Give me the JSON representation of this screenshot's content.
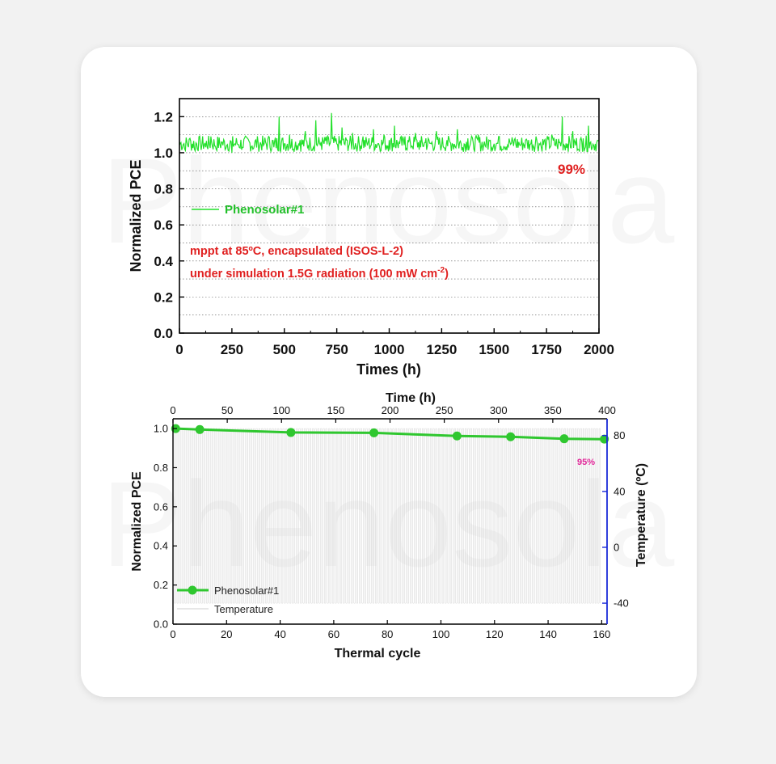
{
  "watermark": {
    "text": "Phenosola"
  },
  "chart_data": [
    {
      "type": "line",
      "ylabel": "Normalized PCE",
      "xlabel": "Times (h)",
      "xlim": [
        0,
        2000
      ],
      "ylim": [
        0.0,
        1.3
      ],
      "xticks": [
        "0",
        "250",
        "500",
        "750",
        "1000",
        "1250",
        "1500",
        "1750",
        "2000"
      ],
      "yticks": [
        "0.0",
        "0.2",
        "0.4",
        "0.6",
        "0.8",
        "1.0",
        "1.2"
      ],
      "grid": "dotted horizontal",
      "series": [
        {
          "name": "Phenosolar#1",
          "color": "#22e02a",
          "x": [
            0,
            25,
            50,
            75,
            100,
            125,
            150,
            175,
            200,
            225,
            250,
            275,
            300,
            325,
            350,
            375,
            400,
            425,
            450,
            475,
            500,
            525,
            550,
            575,
            600,
            625,
            650,
            675,
            700,
            725,
            750,
            775,
            800,
            825,
            850,
            875,
            900,
            925,
            950,
            975,
            1000,
            1025,
            1050,
            1075,
            1100,
            1125,
            1150,
            1175,
            1200,
            1225,
            1250,
            1275,
            1300,
            1325,
            1350,
            1375,
            1400,
            1425,
            1450,
            1475,
            1500,
            1525,
            1550,
            1575,
            1600,
            1625,
            1650,
            1675,
            1700,
            1725,
            1750,
            1775,
            1800,
            1825,
            1850,
            1875,
            1900,
            1925,
            1950,
            1975,
            2000
          ],
          "y": [
            1.06,
            1.02,
            1.08,
            1.01,
            1.05,
            1.03,
            1.09,
            1.02,
            1.06,
            1.04,
            1.0,
            1.05,
            1.03,
            1.08,
            1.02,
            1.06,
            1.04,
            1.09,
            1.03,
            1.2,
            1.05,
            1.1,
            1.03,
            1.07,
            1.12,
            1.04,
            1.18,
            1.06,
            1.09,
            1.22,
            1.05,
            1.14,
            1.07,
            1.11,
            1.04,
            1.09,
            1.06,
            1.13,
            1.05,
            1.1,
            1.07,
            1.15,
            1.05,
            1.09,
            1.06,
            1.11,
            1.03,
            1.08,
            1.05,
            1.12,
            1.04,
            1.07,
            1.05,
            1.13,
            1.03,
            1.08,
            1.06,
            1.1,
            1.04,
            1.07,
            1.05,
            1.09,
            1.03,
            1.06,
            1.08,
            1.04,
            1.07,
            1.05,
            1.09,
            1.03,
            1.06,
            1.1,
            1.04,
            1.2,
            1.05,
            1.12,
            1.02,
            1.08,
            1.15,
            1.04,
            1.07
          ]
        }
      ],
      "annotations": [
        {
          "text": "99%",
          "color": "#e02020"
        },
        {
          "text": "mppt at 85ºC, encapsulated (ISOS-L-2)",
          "color": "#e02020"
        },
        {
          "text": "under simulation 1.5G radiation (100 mW cm",
          "sup": "-2",
          "tail": ")",
          "color": "#e02020"
        }
      ],
      "legend_position": "middle-left"
    },
    {
      "type": "line",
      "ylabel": "Normalized PCE",
      "xlabel": "Thermal cycle",
      "x2label": "Time (h)",
      "y2label": "Temperature (ºC)",
      "xlim": [
        0,
        162
      ],
      "ylim": [
        0.0,
        1.05
      ],
      "x2lim": [
        0,
        400
      ],
      "y2lim": [
        -55,
        92
      ],
      "xticks": [
        "0",
        "20",
        "40",
        "60",
        "80",
        "100",
        "120",
        "140",
        "160"
      ],
      "yticks": [
        "0.0",
        "0.2",
        "0.4",
        "0.6",
        "0.8",
        "1.0"
      ],
      "x2ticks": [
        "0",
        "50",
        "100",
        "150",
        "200",
        "250",
        "300",
        "350",
        "400"
      ],
      "y2ticks": [
        "-40",
        "0",
        "40",
        "80"
      ],
      "series": [
        {
          "name": "Phenosolar#1",
          "color": "#2fc72f",
          "marker": "circle",
          "x": [
            1,
            10,
            44,
            75,
            106,
            126,
            146,
            161
          ],
          "y": [
            1.0,
            0.995,
            0.98,
            0.978,
            0.962,
            0.958,
            0.948,
            0.946
          ]
        },
        {
          "name": "Temperature",
          "color": "#cfcfcf",
          "cycles": 160,
          "range": [
            -40,
            85
          ]
        }
      ],
      "annotations": [
        {
          "text": "95%",
          "color": "#e2289a"
        }
      ],
      "legend_position": "bottom-left"
    }
  ]
}
